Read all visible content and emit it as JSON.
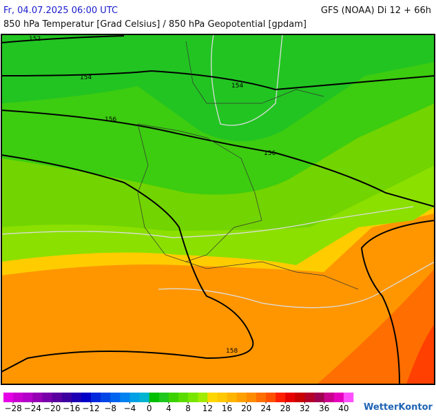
{
  "header": {
    "left": "Fr, 04.07.2025 06:00 UTC",
    "right": "GFS (NOAA) Di 12 + 66h",
    "subtitle": "850 hPa Temperatur [Grad Celsius] / 850 hPa Geopotential [gpdam]"
  },
  "contour_labels": [
    "152",
    "154",
    "154",
    "156",
    "156",
    "158"
  ],
  "colorbar": {
    "range": [
      -30,
      42
    ],
    "colors": [
      "#e600e6",
      "#c800d2",
      "#b400c8",
      "#9600b4",
      "#7800aa",
      "#5a00a0",
      "#3c00a0",
      "#1e00b4",
      "#0000c8",
      "#0028dc",
      "#0046e6",
      "#0064f0",
      "#0082f0",
      "#00a0e6",
      "#00b4d2",
      "#00be00",
      "#1ec81e",
      "#3cd200",
      "#5adc00",
      "#78e600",
      "#a0eb00",
      "#ffd700",
      "#ffc800",
      "#ffb400",
      "#ffa000",
      "#ff8c00",
      "#ff6e00",
      "#ff5000",
      "#ff1e00",
      "#e60000",
      "#c80000",
      "#b40028",
      "#a00050",
      "#c8008c",
      "#e600be",
      "#ff50ff"
    ],
    "ticks": [
      {
        "value": -28,
        "label": "−28"
      },
      {
        "value": -24,
        "label": "−24"
      },
      {
        "value": -20,
        "label": "−20"
      },
      {
        "value": -16,
        "label": "−16"
      },
      {
        "value": -12,
        "label": "−12"
      },
      {
        "value": -8,
        "label": "−8"
      },
      {
        "value": -4,
        "label": "−4"
      },
      0,
      4,
      8,
      12,
      16,
      20,
      24,
      28,
      32,
      36,
      40
    ]
  },
  "brand": "WetterKontor"
}
